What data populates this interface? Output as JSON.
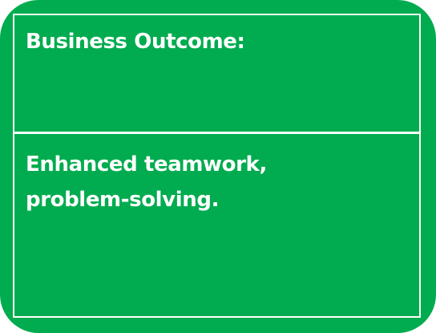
{
  "card": {
    "header": "Business Outcome:",
    "body_line_1": "Enhanced teamwork,",
    "body_line_2": "problem-solving."
  },
  "colors": {
    "background": "#00ac4f",
    "text": "#ffffff",
    "border": "#ffffff"
  }
}
